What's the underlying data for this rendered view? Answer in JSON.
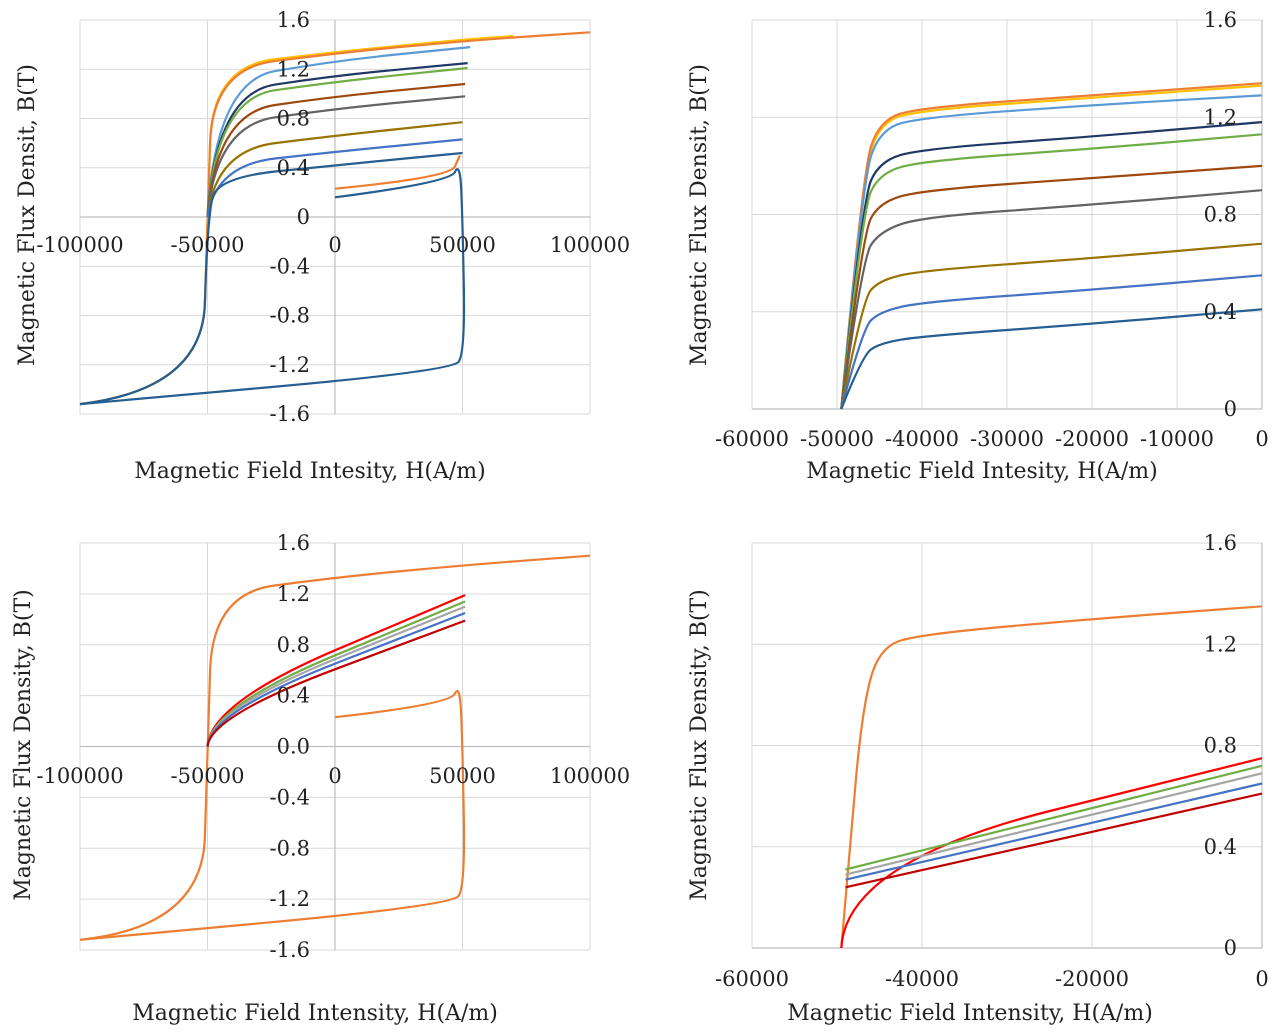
{
  "chart_data": [
    {
      "type": "line",
      "title": "",
      "xlabel": "Magnetic Field Intesity, H(A/m)",
      "ylabel": "Magnetic Flux Densit, B(T)",
      "xlim": [
        -100000,
        100000
      ],
      "ylim": [
        -1.6,
        1.6
      ],
      "xticks": [
        "-100000",
        "-50000",
        "0",
        "50000",
        "100000"
      ],
      "yticks": [
        "-1.6",
        "-1.2",
        "-0.8",
        "-0.4",
        "0",
        "0.4",
        "0.8",
        "1.2",
        "1.6"
      ],
      "grid": true,
      "legend": "none",
      "series": [
        {
          "color": "#ffc000",
          "values": [
            {
              "x": -100000,
              "y": -1.52
            },
            {
              "x": -52000,
              "y": -1.4
            },
            {
              "x": -50000,
              "y": 0.0
            },
            {
              "x": -48000,
              "y": 1.22
            },
            {
              "x": 0,
              "y": 1.34
            },
            {
              "x": 50000,
              "y": 1.44
            },
            {
              "x": 70000,
              "y": 1.47
            }
          ]
        },
        {
          "color": "#ed7d31",
          "values": [
            {
              "x": -100000,
              "y": -1.52
            },
            {
              "x": -52000,
              "y": -1.4
            },
            {
              "x": -50000,
              "y": 0.0
            },
            {
              "x": -48000,
              "y": 1.2
            },
            {
              "x": 0,
              "y": 1.33
            },
            {
              "x": 50000,
              "y": 1.43
            },
            {
              "x": 100000,
              "y": 1.5
            }
          ]
        },
        {
          "color": "#5b9bd5",
          "values": [
            {
              "x": -50000,
              "y": 0.0
            },
            {
              "x": -47000,
              "y": 1.1
            },
            {
              "x": 0,
              "y": 1.27
            },
            {
              "x": 53000,
              "y": 1.38
            }
          ]
        },
        {
          "color": "#203864",
          "values": [
            {
              "x": -50000,
              "y": 0.0
            },
            {
              "x": -47000,
              "y": 1.0
            },
            {
              "x": 0,
              "y": 1.15
            },
            {
              "x": 52000,
              "y": 1.25
            }
          ]
        },
        {
          "color": "#70ad47",
          "values": [
            {
              "x": -50000,
              "y": 0.0
            },
            {
              "x": -47000,
              "y": 0.96
            },
            {
              "x": 0,
              "y": 1.1
            },
            {
              "x": 52000,
              "y": 1.21
            }
          ]
        },
        {
          "color": "#9e480e",
          "values": [
            {
              "x": -50000,
              "y": 0.0
            },
            {
              "x": -47000,
              "y": 0.84
            },
            {
              "x": 0,
              "y": 0.98
            },
            {
              "x": 51000,
              "y": 1.08
            }
          ]
        },
        {
          "color": "#636363",
          "values": [
            {
              "x": -50000,
              "y": 0.0
            },
            {
              "x": -47000,
              "y": 0.74
            },
            {
              "x": 0,
              "y": 0.88
            },
            {
              "x": 51000,
              "y": 0.98
            }
          ]
        },
        {
          "color": "#997300",
          "values": [
            {
              "x": -50000,
              "y": 0.0
            },
            {
              "x": -47000,
              "y": 0.54
            },
            {
              "x": 0,
              "y": 0.66
            },
            {
              "x": 50000,
              "y": 0.77
            }
          ]
        },
        {
          "color": "#4472c4",
          "values": [
            {
              "x": -50000,
              "y": 0.0
            },
            {
              "x": -47000,
              "y": 0.42
            },
            {
              "x": 0,
              "y": 0.53
            },
            {
              "x": 50000,
              "y": 0.63
            }
          ]
        },
        {
          "color": "#255e91",
          "values": [
            {
              "x": -100000,
              "y": -1.52
            },
            {
              "x": -52000,
              "y": -1.4
            },
            {
              "x": -50000,
              "y": 0.0
            },
            {
              "x": -46000,
              "y": 0.32
            },
            {
              "x": 0,
              "y": 0.42
            },
            {
              "x": 50000,
              "y": 0.52
            }
          ]
        },
        {
          "color": "#255e91",
          "values": [
            {
              "x": 0,
              "y": 0.16
            },
            {
              "x": 45000,
              "y": 0.28
            },
            {
              "x": 49000,
              "y": 0.45
            },
            {
              "x": 50000,
              "y": 0.0
            },
            {
              "x": 51000,
              "y": -1.1
            },
            {
              "x": 46000,
              "y": -1.25
            },
            {
              "x": -100000,
              "y": -1.52
            }
          ]
        },
        {
          "color": "#ed7d31",
          "values": [
            {
              "x": 0,
              "y": 0.23
            },
            {
              "x": 45000,
              "y": 0.32
            },
            {
              "x": 49000,
              "y": 0.5
            }
          ]
        }
      ]
    },
    {
      "type": "line",
      "title": "",
      "xlabel": "Magnetic Field Intesity, H(A/m)",
      "ylabel": "Magnetic Flux Densit, B(T)",
      "xlim": [
        -60000,
        0
      ],
      "ylim": [
        0,
        1.6
      ],
      "xticks": [
        "-60000",
        "-50000",
        "-40000",
        "-30000",
        "-20000",
        "-10000",
        "0"
      ],
      "yticks": [
        "0",
        "0.4",
        "0.8",
        "1.2",
        "1.6"
      ],
      "grid": true,
      "legend": "none",
      "series": [
        {
          "color": "#ffc000",
          "values": [
            {
              "x": -49500,
              "y": 0.0
            },
            {
              "x": -47000,
              "y": 0.95
            },
            {
              "x": -45000,
              "y": 1.18
            },
            {
              "x": -40000,
              "y": 1.23
            },
            {
              "x": -20000,
              "y": 1.28
            },
            {
              "x": 0,
              "y": 1.33
            }
          ]
        },
        {
          "color": "#ed7d31",
          "values": [
            {
              "x": -49500,
              "y": 0.0
            },
            {
              "x": -47000,
              "y": 0.97
            },
            {
              "x": -45000,
              "y": 1.19
            },
            {
              "x": -40000,
              "y": 1.24
            },
            {
              "x": -20000,
              "y": 1.29
            },
            {
              "x": 0,
              "y": 1.34
            }
          ]
        },
        {
          "color": "#5b9bd5",
          "values": [
            {
              "x": -49500,
              "y": 0.0
            },
            {
              "x": -47000,
              "y": 0.93
            },
            {
              "x": -45000,
              "y": 1.15
            },
            {
              "x": -40000,
              "y": 1.2
            },
            {
              "x": -20000,
              "y": 1.25
            },
            {
              "x": 0,
              "y": 1.29
            }
          ]
        },
        {
          "color": "#203864",
          "values": [
            {
              "x": -49500,
              "y": 0.0
            },
            {
              "x": -47000,
              "y": 0.86
            },
            {
              "x": -45000,
              "y": 1.02
            },
            {
              "x": -40000,
              "y": 1.07
            },
            {
              "x": -20000,
              "y": 1.12
            },
            {
              "x": 0,
              "y": 1.18
            }
          ]
        },
        {
          "color": "#70ad47",
          "values": [
            {
              "x": -49500,
              "y": 0.0
            },
            {
              "x": -47000,
              "y": 0.82
            },
            {
              "x": -45000,
              "y": 0.97
            },
            {
              "x": -40000,
              "y": 1.02
            },
            {
              "x": -20000,
              "y": 1.07
            },
            {
              "x": 0,
              "y": 1.13
            }
          ]
        },
        {
          "color": "#9e480e",
          "values": [
            {
              "x": -49500,
              "y": 0.0
            },
            {
              "x": -47000,
              "y": 0.72
            },
            {
              "x": -45000,
              "y": 0.85
            },
            {
              "x": -40000,
              "y": 0.9
            },
            {
              "x": -20000,
              "y": 0.95
            },
            {
              "x": 0,
              "y": 1.0
            }
          ]
        },
        {
          "color": "#636363",
          "values": [
            {
              "x": -49500,
              "y": 0.0
            },
            {
              "x": -47000,
              "y": 0.62
            },
            {
              "x": -45000,
              "y": 0.73
            },
            {
              "x": -40000,
              "y": 0.79
            },
            {
              "x": -20000,
              "y": 0.84
            },
            {
              "x": 0,
              "y": 0.9
            }
          ]
        },
        {
          "color": "#997300",
          "values": [
            {
              "x": -49500,
              "y": 0.0
            },
            {
              "x": -47000,
              "y": 0.45
            },
            {
              "x": -45000,
              "y": 0.53
            },
            {
              "x": -40000,
              "y": 0.57
            },
            {
              "x": -20000,
              "y": 0.62
            },
            {
              "x": 0,
              "y": 0.68
            }
          ]
        },
        {
          "color": "#4472c4",
          "values": [
            {
              "x": -49500,
              "y": 0.0
            },
            {
              "x": -47000,
              "y": 0.33
            },
            {
              "x": -45000,
              "y": 0.4
            },
            {
              "x": -40000,
              "y": 0.44
            },
            {
              "x": -20000,
              "y": 0.49
            },
            {
              "x": 0,
              "y": 0.55
            }
          ]
        },
        {
          "color": "#255e91",
          "values": [
            {
              "x": -49500,
              "y": 0.0
            },
            {
              "x": -47000,
              "y": 0.22
            },
            {
              "x": -45000,
              "y": 0.27
            },
            {
              "x": -40000,
              "y": 0.3
            },
            {
              "x": -20000,
              "y": 0.35
            },
            {
              "x": 0,
              "y": 0.41
            }
          ]
        }
      ]
    },
    {
      "type": "line",
      "title": "",
      "xlabel": "Magnetic Field Intensity, H(A/m)",
      "ylabel": "Magnetic Flux Density, B(T)",
      "xlim": [
        -100000,
        100000
      ],
      "ylim": [
        -1.6,
        1.6
      ],
      "xticks": [
        "-100000",
        "-50000",
        "0",
        "50000",
        "100000"
      ],
      "yticks": [
        "-1.6",
        "-1.2",
        "-0.8",
        "-0.4",
        "0.0",
        "0.4",
        "0.8",
        "1.2",
        "1.6"
      ],
      "grid": true,
      "legend": "none",
      "series": [
        {
          "color": "#ed7d31",
          "values": [
            {
              "x": -100000,
              "y": -1.52
            },
            {
              "x": -52000,
              "y": -1.42
            },
            {
              "x": -50000,
              "y": 0.0
            },
            {
              "x": -48000,
              "y": 1.2
            },
            {
              "x": 0,
              "y": 1.33
            },
            {
              "x": 53000,
              "y": 1.43
            },
            {
              "x": 100000,
              "y": 1.5
            }
          ]
        },
        {
          "color": "#ed7d31",
          "values": [
            {
              "x": 0,
              "y": 0.23
            },
            {
              "x": 45000,
              "y": 0.33
            },
            {
              "x": 49000,
              "y": 0.5
            },
            {
              "x": 50000,
              "y": 0.0
            },
            {
              "x": 51000,
              "y": -1.1
            },
            {
              "x": 46000,
              "y": -1.25
            },
            {
              "x": -100000,
              "y": -1.52
            }
          ]
        },
        {
          "color": "#ff0000",
          "values": [
            {
              "x": -50000,
              "y": 0.0
            },
            {
              "x": -49000,
              "y": 0.34
            },
            {
              "x": 51000,
              "y": 1.19
            }
          ]
        },
        {
          "color": "#70ad47",
          "values": [
            {
              "x": -50000,
              "y": 0.0
            },
            {
              "x": -49000,
              "y": 0.31
            },
            {
              "x": 51000,
              "y": 1.14
            }
          ]
        },
        {
          "color": "#a5a5a5",
          "values": [
            {
              "x": -50000,
              "y": 0.0
            },
            {
              "x": -49000,
              "y": 0.29
            },
            {
              "x": 51000,
              "y": 1.1
            }
          ]
        },
        {
          "color": "#4472c4",
          "values": [
            {
              "x": -50000,
              "y": 0.0
            },
            {
              "x": -49000,
              "y": 0.27
            },
            {
              "x": 51000,
              "y": 1.05
            }
          ]
        },
        {
          "color": "#c00000",
          "values": [
            {
              "x": -50000,
              "y": 0.0
            },
            {
              "x": -49000,
              "y": 0.24
            },
            {
              "x": 51000,
              "y": 0.99
            }
          ]
        }
      ]
    },
    {
      "type": "line",
      "title": "",
      "xlabel": "Magnetic Field Intensity, H(A/m)",
      "ylabel": "Magnetic Flux Density, B(T)",
      "xlim": [
        -60000,
        0
      ],
      "ylim": [
        0,
        1.6
      ],
      "xticks": [
        "-60000",
        "-40000",
        "-20000",
        "0"
      ],
      "yticks": [
        "0",
        "0.4",
        "0.8",
        "1.2",
        "1.6"
      ],
      "grid": true,
      "legend": "none",
      "series": [
        {
          "color": "#ed7d31",
          "values": [
            {
              "x": -49500,
              "y": 0.0
            },
            {
              "x": -48500,
              "y": 0.4
            },
            {
              "x": -47000,
              "y": 0.95
            },
            {
              "x": -45000,
              "y": 1.19
            },
            {
              "x": -40000,
              "y": 1.24
            },
            {
              "x": -20000,
              "y": 1.3
            },
            {
              "x": 0,
              "y": 1.35
            }
          ]
        },
        {
          "color": "#ff0000",
          "values": [
            {
              "x": -49500,
              "y": 0.0
            },
            {
              "x": -49000,
              "y": 0.34
            },
            {
              "x": 0,
              "y": 0.75
            }
          ]
        },
        {
          "color": "#70ad47",
          "values": [
            {
              "x": -49000,
              "y": 0.31
            },
            {
              "x": 0,
              "y": 0.72
            }
          ]
        },
        {
          "color": "#a5a5a5",
          "values": [
            {
              "x": -49000,
              "y": 0.29
            },
            {
              "x": 0,
              "y": 0.69
            }
          ]
        },
        {
          "color": "#4472c4",
          "values": [
            {
              "x": -49000,
              "y": 0.27
            },
            {
              "x": 0,
              "y": 0.65
            }
          ]
        },
        {
          "color": "#c00000",
          "values": [
            {
              "x": -49000,
              "y": 0.24
            },
            {
              "x": 0,
              "y": 0.61
            }
          ]
        }
      ]
    }
  ]
}
